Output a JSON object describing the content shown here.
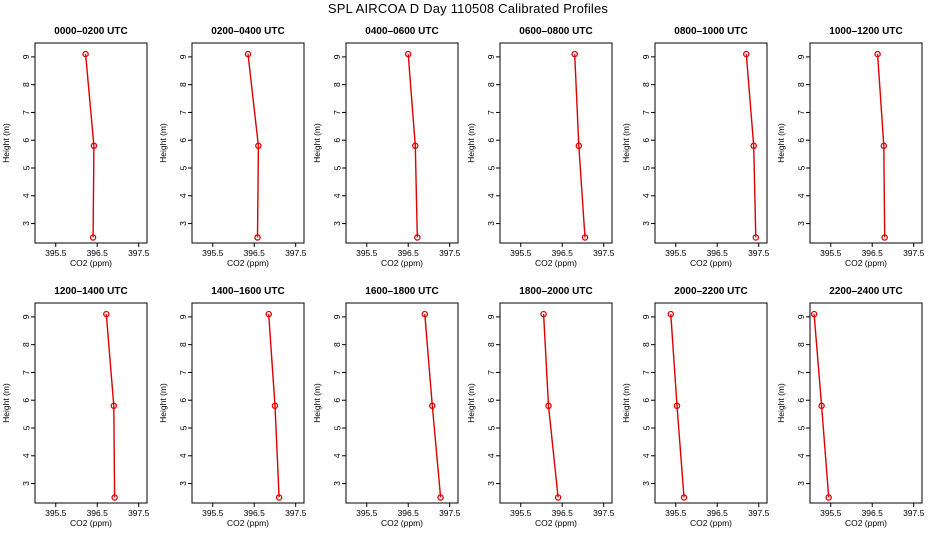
{
  "title": "SPL AIRCOA D  Day 110508  Calibrated Profiles",
  "chart_data": {
    "type": "line",
    "shared_axes": {
      "xlabel": "CO2 (ppm)",
      "ylabel": "Height (m)",
      "xlim": [
        395.0,
        397.7
      ],
      "ylim": [
        2.3,
        9.5
      ],
      "xticks": [
        "395.5",
        "396.5",
        "397.5"
      ],
      "xticks_values": [
        395.5,
        396.5,
        397.5
      ],
      "yticks": [
        "3",
        "4",
        "5",
        "6",
        "7",
        "8",
        "9"
      ],
      "yticks_values": [
        3,
        4,
        5,
        6,
        7,
        8,
        9
      ],
      "grid": false,
      "series_color": "#dd0000"
    },
    "panels": [
      {
        "title": "0000–0200 UTC",
        "heights": [
          9.1,
          5.8,
          2.5
        ],
        "values": [
          396.22,
          396.42,
          396.4
        ]
      },
      {
        "title": "0200–0400 UTC",
        "heights": [
          9.1,
          5.8,
          2.5
        ],
        "values": [
          396.35,
          396.6,
          396.58
        ]
      },
      {
        "title": "0400–0600 UTC",
        "heights": [
          9.1,
          5.8,
          2.5
        ],
        "values": [
          396.5,
          396.67,
          396.72
        ]
      },
      {
        "title": "0600–0800 UTC",
        "heights": [
          9.1,
          5.8,
          2.5
        ],
        "values": [
          396.8,
          396.9,
          397.05
        ]
      },
      {
        "title": "0800–1000 UTC",
        "heights": [
          9.1,
          5.8,
          2.5
        ],
        "values": [
          397.2,
          397.38,
          397.43
        ]
      },
      {
        "title": "1000–1200 UTC",
        "heights": [
          9.1,
          5.8,
          2.5
        ],
        "values": [
          396.63,
          396.78,
          396.8
        ]
      },
      {
        "title": "1200–1400 UTC",
        "heights": [
          9.1,
          5.8,
          2.5
        ],
        "values": [
          396.72,
          396.9,
          396.92
        ]
      },
      {
        "title": "1400–1600 UTC",
        "heights": [
          9.1,
          5.8,
          2.5
        ],
        "values": [
          396.85,
          397.0,
          397.1
        ]
      },
      {
        "title": "1600–1800 UTC",
        "heights": [
          9.1,
          5.8,
          2.5
        ],
        "values": [
          396.9,
          397.08,
          397.28
        ]
      },
      {
        "title": "1800–2000 UTC",
        "heights": [
          9.1,
          5.8,
          2.5
        ],
        "values": [
          396.05,
          396.17,
          396.4
        ]
      },
      {
        "title": "2000–2200 UTC",
        "heights": [
          9.1,
          5.8,
          2.5
        ],
        "values": [
          395.38,
          395.53,
          395.7
        ]
      },
      {
        "title": "2200–2400 UTC",
        "heights": [
          9.1,
          5.8,
          2.5
        ],
        "values": [
          395.1,
          395.28,
          395.45
        ]
      }
    ]
  }
}
